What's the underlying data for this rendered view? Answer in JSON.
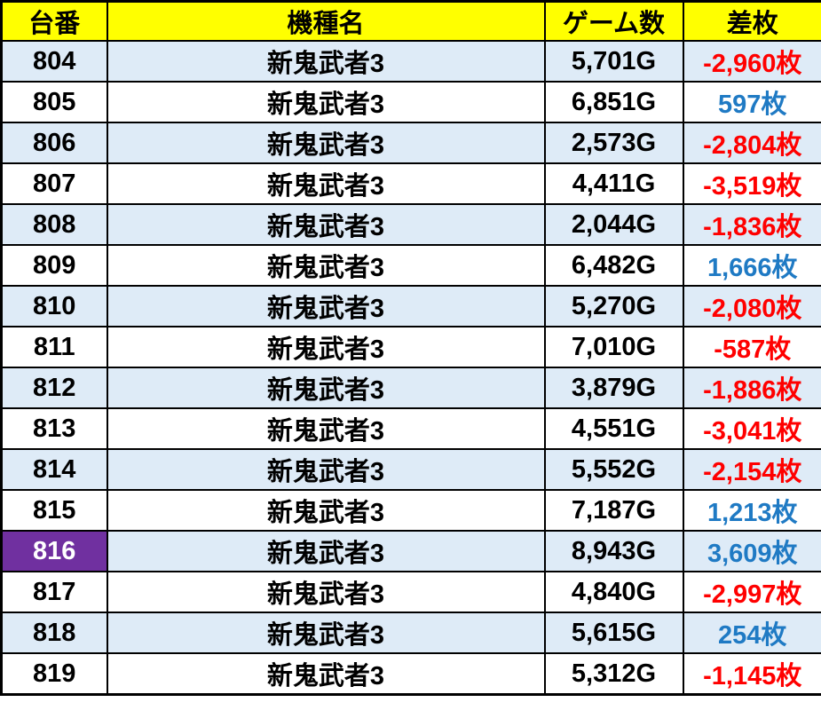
{
  "colors": {
    "header_bg": "#FFFF00",
    "header_text": "#000000",
    "row_bg": "#FFFFFF",
    "row_alt_bg": "#DEEBF7",
    "highlight_bg": "#7030A0",
    "negative": "#FF0000",
    "positive": "#1F7AC4",
    "border": "#000000"
  },
  "chart_data": {
    "type": "table",
    "columns": [
      "台番",
      "機種名",
      "ゲーム数",
      "差枚"
    ],
    "rows": [
      {
        "dai": "804",
        "model": "新鬼武者3",
        "games": "5,701G",
        "diff": "-2,960枚",
        "diff_sign": "negative",
        "dai_highlight": false
      },
      {
        "dai": "805",
        "model": "新鬼武者3",
        "games": "6,851G",
        "diff": "597枚",
        "diff_sign": "positive",
        "dai_highlight": false
      },
      {
        "dai": "806",
        "model": "新鬼武者3",
        "games": "2,573G",
        "diff": "-2,804枚",
        "diff_sign": "negative",
        "dai_highlight": false
      },
      {
        "dai": "807",
        "model": "新鬼武者3",
        "games": "4,411G",
        "diff": "-3,519枚",
        "diff_sign": "negative",
        "dai_highlight": false
      },
      {
        "dai": "808",
        "model": "新鬼武者3",
        "games": "2,044G",
        "diff": "-1,836枚",
        "diff_sign": "negative",
        "dai_highlight": false
      },
      {
        "dai": "809",
        "model": "新鬼武者3",
        "games": "6,482G",
        "diff": "1,666枚",
        "diff_sign": "positive",
        "dai_highlight": false
      },
      {
        "dai": "810",
        "model": "新鬼武者3",
        "games": "5,270G",
        "diff": "-2,080枚",
        "diff_sign": "negative",
        "dai_highlight": false
      },
      {
        "dai": "811",
        "model": "新鬼武者3",
        "games": "7,010G",
        "diff": "-587枚",
        "diff_sign": "negative",
        "dai_highlight": false
      },
      {
        "dai": "812",
        "model": "新鬼武者3",
        "games": "3,879G",
        "diff": "-1,886枚",
        "diff_sign": "negative",
        "dai_highlight": false
      },
      {
        "dai": "813",
        "model": "新鬼武者3",
        "games": "4,551G",
        "diff": "-3,041枚",
        "diff_sign": "negative",
        "dai_highlight": false
      },
      {
        "dai": "814",
        "model": "新鬼武者3",
        "games": "5,552G",
        "diff": "-2,154枚",
        "diff_sign": "negative",
        "dai_highlight": false
      },
      {
        "dai": "815",
        "model": "新鬼武者3",
        "games": "7,187G",
        "diff": "1,213枚",
        "diff_sign": "positive",
        "dai_highlight": false
      },
      {
        "dai": "816",
        "model": "新鬼武者3",
        "games": "8,943G",
        "diff": "3,609枚",
        "diff_sign": "positive",
        "dai_highlight": true
      },
      {
        "dai": "817",
        "model": "新鬼武者3",
        "games": "4,840G",
        "diff": "-2,997枚",
        "diff_sign": "negative",
        "dai_highlight": false
      },
      {
        "dai": "818",
        "model": "新鬼武者3",
        "games": "5,615G",
        "diff": "254枚",
        "diff_sign": "positive",
        "dai_highlight": false
      },
      {
        "dai": "819",
        "model": "新鬼武者3",
        "games": "5,312G",
        "diff": "-1,145枚",
        "diff_sign": "negative",
        "dai_highlight": false
      }
    ]
  }
}
